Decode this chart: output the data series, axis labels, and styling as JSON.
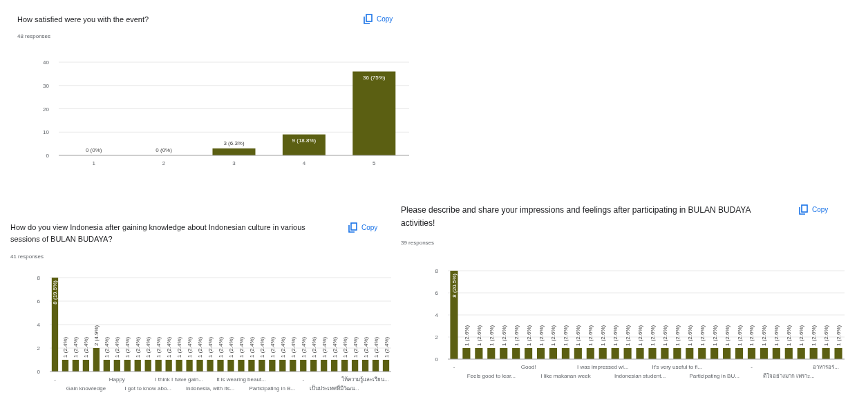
{
  "chart_data": [
    {
      "type": "bar",
      "title": "How satisfied were you with the event?",
      "subtitle": "48 responses",
      "annotations": [
        "Copy"
      ],
      "categories": [
        "1",
        "2",
        "3",
        "4",
        "5"
      ],
      "values": [
        0,
        0,
        3,
        9,
        36
      ],
      "value_labels": [
        "0 (0%)",
        "0 (0%)",
        "3 (6.3%)",
        "9 (18.8%)",
        "36 (75%)"
      ],
      "color": "#5b5f12",
      "ylim": [
        0,
        40
      ],
      "yticks": [
        0,
        10,
        20,
        30,
        40
      ],
      "grid": "y"
    },
    {
      "type": "bar",
      "title": "How do you view Indonesia after gaining knowledge about Indonesian culture in various sessions of BULAN BUDAYA?",
      "subtitle": "41 responses",
      "annotations": [
        "Copy"
      ],
      "categories": [
        "-",
        null,
        null,
        "Gain knowledge",
        null,
        null,
        "Happy",
        null,
        null,
        "I got to know abo...",
        null,
        null,
        "I think I have gain...",
        null,
        null,
        "Indonesia, with its...",
        null,
        null,
        "It is wearing beaut...",
        null,
        null,
        "Participating in B...",
        null,
        null,
        "-",
        null,
        null,
        "เป็นประเทศที่มีวัฒน...",
        null,
        null,
        "ให้ความรู้และเรียน...",
        null,
        null
      ],
      "values": [
        8,
        1,
        1,
        1,
        2,
        1,
        1,
        1,
        1,
        1,
        1,
        1,
        1,
        1,
        1,
        1,
        1,
        1,
        1,
        1,
        1,
        1,
        1,
        1,
        1,
        1,
        1,
        1,
        1,
        1,
        1,
        1,
        1
      ],
      "value_labels": [
        "8 (19.5%)",
        "1 (2.4%)",
        "1 (2.4%)",
        "1 (2.4%)",
        "2 (4.9%)",
        "1 (2.4%)",
        "1 (2.4%)",
        "1 (2.4%)",
        "1 (2.4%)",
        "1 (2.4%)",
        "1 (2.4%)",
        "1 (2.4%)",
        "1 (2.4%)",
        "1 (2.4%)",
        "1 (2.4%)",
        "1 (2.4%)",
        "1 (2.4%)",
        "1 (2.4%)",
        "1 (2.4%)",
        "1 (2.4%)",
        "1 (2.4%)",
        "1 (2.4%)",
        "1 (2.4%)",
        "1 (2.4%)",
        "1 (2.4%)",
        "1 (2.4%)",
        "1 (2.4%)",
        "1 (2.4%)",
        "1 (2.4%)",
        "1 (2.4%)",
        "1 (2.4%)",
        "1 (2.4%)",
        "1 (2.4%)"
      ],
      "color": "#5b5f12",
      "ylim": [
        0,
        8
      ],
      "yticks": [
        0,
        2,
        4,
        6,
        8
      ],
      "grid": "y"
    },
    {
      "type": "bar",
      "title": "Please describe and share your impressions and feelings after participating in BULAN BUDAYA activities!",
      "subtitle": "39 responses",
      "annotations": [
        "Copy"
      ],
      "categories": [
        "-",
        null,
        null,
        "Feels good to lear...",
        null,
        null,
        "Good!",
        null,
        null,
        "I like makanan week",
        null,
        null,
        "I was impressed wi...",
        null,
        null,
        "Indonesian student...",
        null,
        null,
        "It's very useful to fi...",
        null,
        null,
        "Participating in BU...",
        null,
        null,
        "-",
        null,
        null,
        "ดีใจอย่างมาก เพราะ...",
        null,
        null,
        "อาหารอร่...",
        null
      ],
      "values": [
        8,
        1,
        1,
        1,
        1,
        1,
        1,
        1,
        1,
        1,
        1,
        1,
        1,
        1,
        1,
        1,
        1,
        1,
        1,
        1,
        1,
        1,
        1,
        1,
        1,
        1,
        1,
        1,
        1,
        1,
        1,
        1
      ],
      "value_labels": [
        "8 (20.5%)",
        "1 (2.6%)",
        "1 (2.6%)",
        "1 (2.6%)",
        "1 (2.6%)",
        "1 (2.6%)",
        "1 (2.6%)",
        "1 (2.6%)",
        "1 (2.6%)",
        "1 (2.6%)",
        "1 (2.6%)",
        "1 (2.6%)",
        "1 (2.6%)",
        "1 (2.6%)",
        "1 (2.6%)",
        "1 (2.6%)",
        "1 (2.6%)",
        "1 (2.6%)",
        "1 (2.6%)",
        "1 (2.6%)",
        "1 (2.6%)",
        "1 (2.6%)",
        "1 (2.6%)",
        "1 (2.6%)",
        "1 (2.6%)",
        "1 (2.6%)",
        "1 (2.6%)",
        "1 (2.6%)",
        "1 (2.6%)",
        "1 (2.6%)",
        "1 (2.6%)",
        "1 (2.6%)"
      ],
      "color": "#5b5f12",
      "ylim": [
        0,
        8
      ],
      "yticks": [
        0,
        2,
        4,
        6,
        8
      ],
      "grid": "y"
    }
  ]
}
